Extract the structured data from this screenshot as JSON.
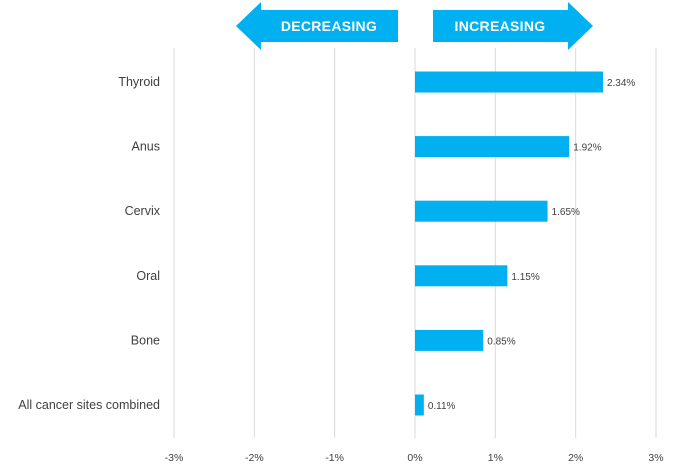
{
  "colors": {
    "bar": "#00b0f0",
    "arrow": "#00b0f0",
    "grid": "#d9d9d9",
    "text": "#404040"
  },
  "header": {
    "left_arrow_label": "DECREASING",
    "right_arrow_label": "INCREASING"
  },
  "chart_data": {
    "type": "bar",
    "orientation": "horizontal",
    "categories": [
      "Thyroid",
      "Anus",
      "Cervix",
      "Oral",
      "Bone",
      "All cancer sites combined"
    ],
    "values": [
      2.34,
      1.92,
      1.65,
      1.15,
      0.85,
      0.11
    ],
    "value_labels": [
      "2.34%",
      "1.92%",
      "1.65%",
      "1.15%",
      "0.85%",
      "0.11%"
    ],
    "xlim": [
      -3,
      3
    ],
    "xticks": [
      -3,
      -2,
      -1,
      0,
      1,
      2,
      3
    ],
    "xtick_labels": [
      "-3%",
      "-2%",
      "-1%",
      "0%",
      "1%",
      "2%",
      "3%"
    ],
    "grid": "vertical",
    "legend": "none"
  }
}
